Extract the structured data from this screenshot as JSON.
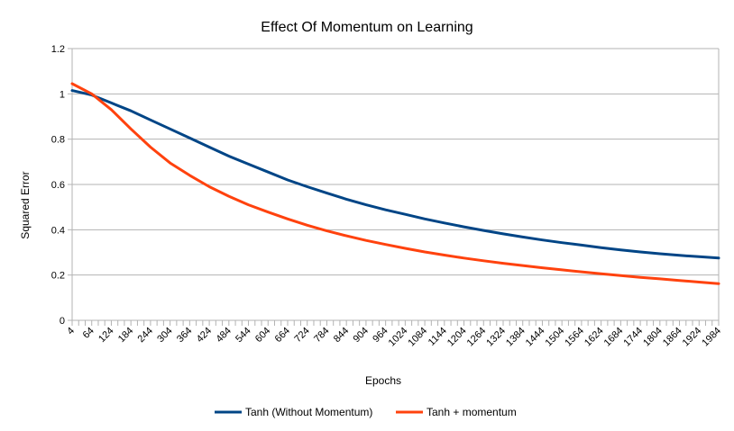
{
  "chart_data": {
    "type": "line",
    "title": "Effect Of Momentum on Learning",
    "xlabel": "Epochs",
    "ylabel": "Squared Error",
    "ylim": [
      0,
      1.2
    ],
    "yticks": [
      "0",
      "0.2",
      "0.4",
      "0.6",
      "0.8",
      "1",
      "1.2"
    ],
    "xlim": [
      4,
      1984
    ],
    "xticks": [
      "4",
      "64",
      "124",
      "184",
      "244",
      "304",
      "364",
      "424",
      "484",
      "544",
      "604",
      "664",
      "724",
      "784",
      "844",
      "904",
      "964",
      "1024",
      "1084",
      "1144",
      "1204",
      "1264",
      "1324",
      "1384",
      "1444",
      "1504",
      "1564",
      "1624",
      "1684",
      "1744",
      "1804",
      "1864",
      "1924",
      "1984"
    ],
    "grid": "horizontal",
    "legend_position": "bottom",
    "series": [
      {
        "name": "Tanh (Without Momentum)",
        "color": "#004586",
        "x": [
          4,
          64,
          124,
          184,
          244,
          304,
          364,
          424,
          484,
          544,
          604,
          664,
          724,
          784,
          844,
          904,
          964,
          1024,
          1084,
          1144,
          1204,
          1264,
          1324,
          1384,
          1444,
          1504,
          1564,
          1624,
          1684,
          1744,
          1804,
          1864,
          1924,
          1984
        ],
        "y": [
          1.015,
          0.995,
          0.96,
          0.925,
          0.885,
          0.845,
          0.805,
          0.765,
          0.725,
          0.69,
          0.655,
          0.62,
          0.59,
          0.562,
          0.535,
          0.51,
          0.488,
          0.468,
          0.448,
          0.43,
          0.413,
          0.397,
          0.382,
          0.368,
          0.355,
          0.343,
          0.332,
          0.321,
          0.311,
          0.302,
          0.294,
          0.287,
          0.281,
          0.275
        ]
      },
      {
        "name": "Tanh + momentum",
        "color": "#ff420e",
        "x": [
          4,
          64,
          124,
          184,
          244,
          304,
          364,
          424,
          484,
          544,
          604,
          664,
          724,
          784,
          844,
          904,
          964,
          1024,
          1084,
          1144,
          1204,
          1264,
          1324,
          1384,
          1444,
          1504,
          1564,
          1624,
          1684,
          1744,
          1804,
          1864,
          1924,
          1984
        ],
        "y": [
          1.045,
          1.0,
          0.93,
          0.845,
          0.765,
          0.695,
          0.64,
          0.59,
          0.548,
          0.51,
          0.478,
          0.448,
          0.42,
          0.395,
          0.373,
          0.353,
          0.335,
          0.318,
          0.302,
          0.288,
          0.275,
          0.263,
          0.252,
          0.242,
          0.232,
          0.223,
          0.214,
          0.206,
          0.198,
          0.19,
          0.183,
          0.176,
          0.169,
          0.162
        ]
      }
    ]
  }
}
